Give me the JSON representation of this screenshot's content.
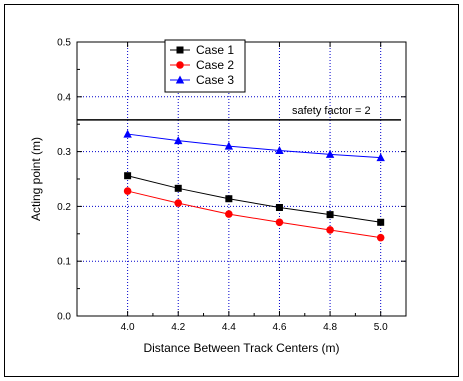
{
  "chart_data": {
    "type": "line",
    "title": "",
    "xlabel": "Distance Between Track Centers (m)",
    "ylabel": "Acting point (m)",
    "xlim": [
      3.8,
      5.1
    ],
    "ylim": [
      0.0,
      0.5
    ],
    "x_ticks": [
      "4.0",
      "4.2",
      "4.4",
      "4.6",
      "4.8",
      "5.0"
    ],
    "y_ticks": [
      "0.0",
      "0.1",
      "0.2",
      "0.3",
      "0.4",
      "0.5"
    ],
    "x_tick_values": [
      4.0,
      4.2,
      4.4,
      4.6,
      4.8,
      5.0
    ],
    "y_tick_values": [
      0.0,
      0.1,
      0.2,
      0.3,
      0.4,
      0.5
    ],
    "grid": true,
    "legend_position": "top-left",
    "x": [
      4.0,
      4.2,
      4.4,
      4.6,
      4.8,
      5.0
    ],
    "series": [
      {
        "name": "Case 1",
        "color": "#000000",
        "marker": "square",
        "values": [
          0.256,
          0.233,
          0.214,
          0.198,
          0.185,
          0.171
        ]
      },
      {
        "name": "Case 2",
        "color": "#ff0000",
        "marker": "circle",
        "values": [
          0.228,
          0.206,
          0.186,
          0.171,
          0.157,
          0.143
        ]
      },
      {
        "name": "Case 3",
        "color": "#0000ff",
        "marker": "triangle",
        "values": [
          0.332,
          0.32,
          0.31,
          0.302,
          0.295,
          0.289
        ]
      }
    ],
    "reference_line": {
      "y": 0.358,
      "label": "safety factor = 2",
      "color": "#000000"
    },
    "grid_color": "#0000cc"
  }
}
